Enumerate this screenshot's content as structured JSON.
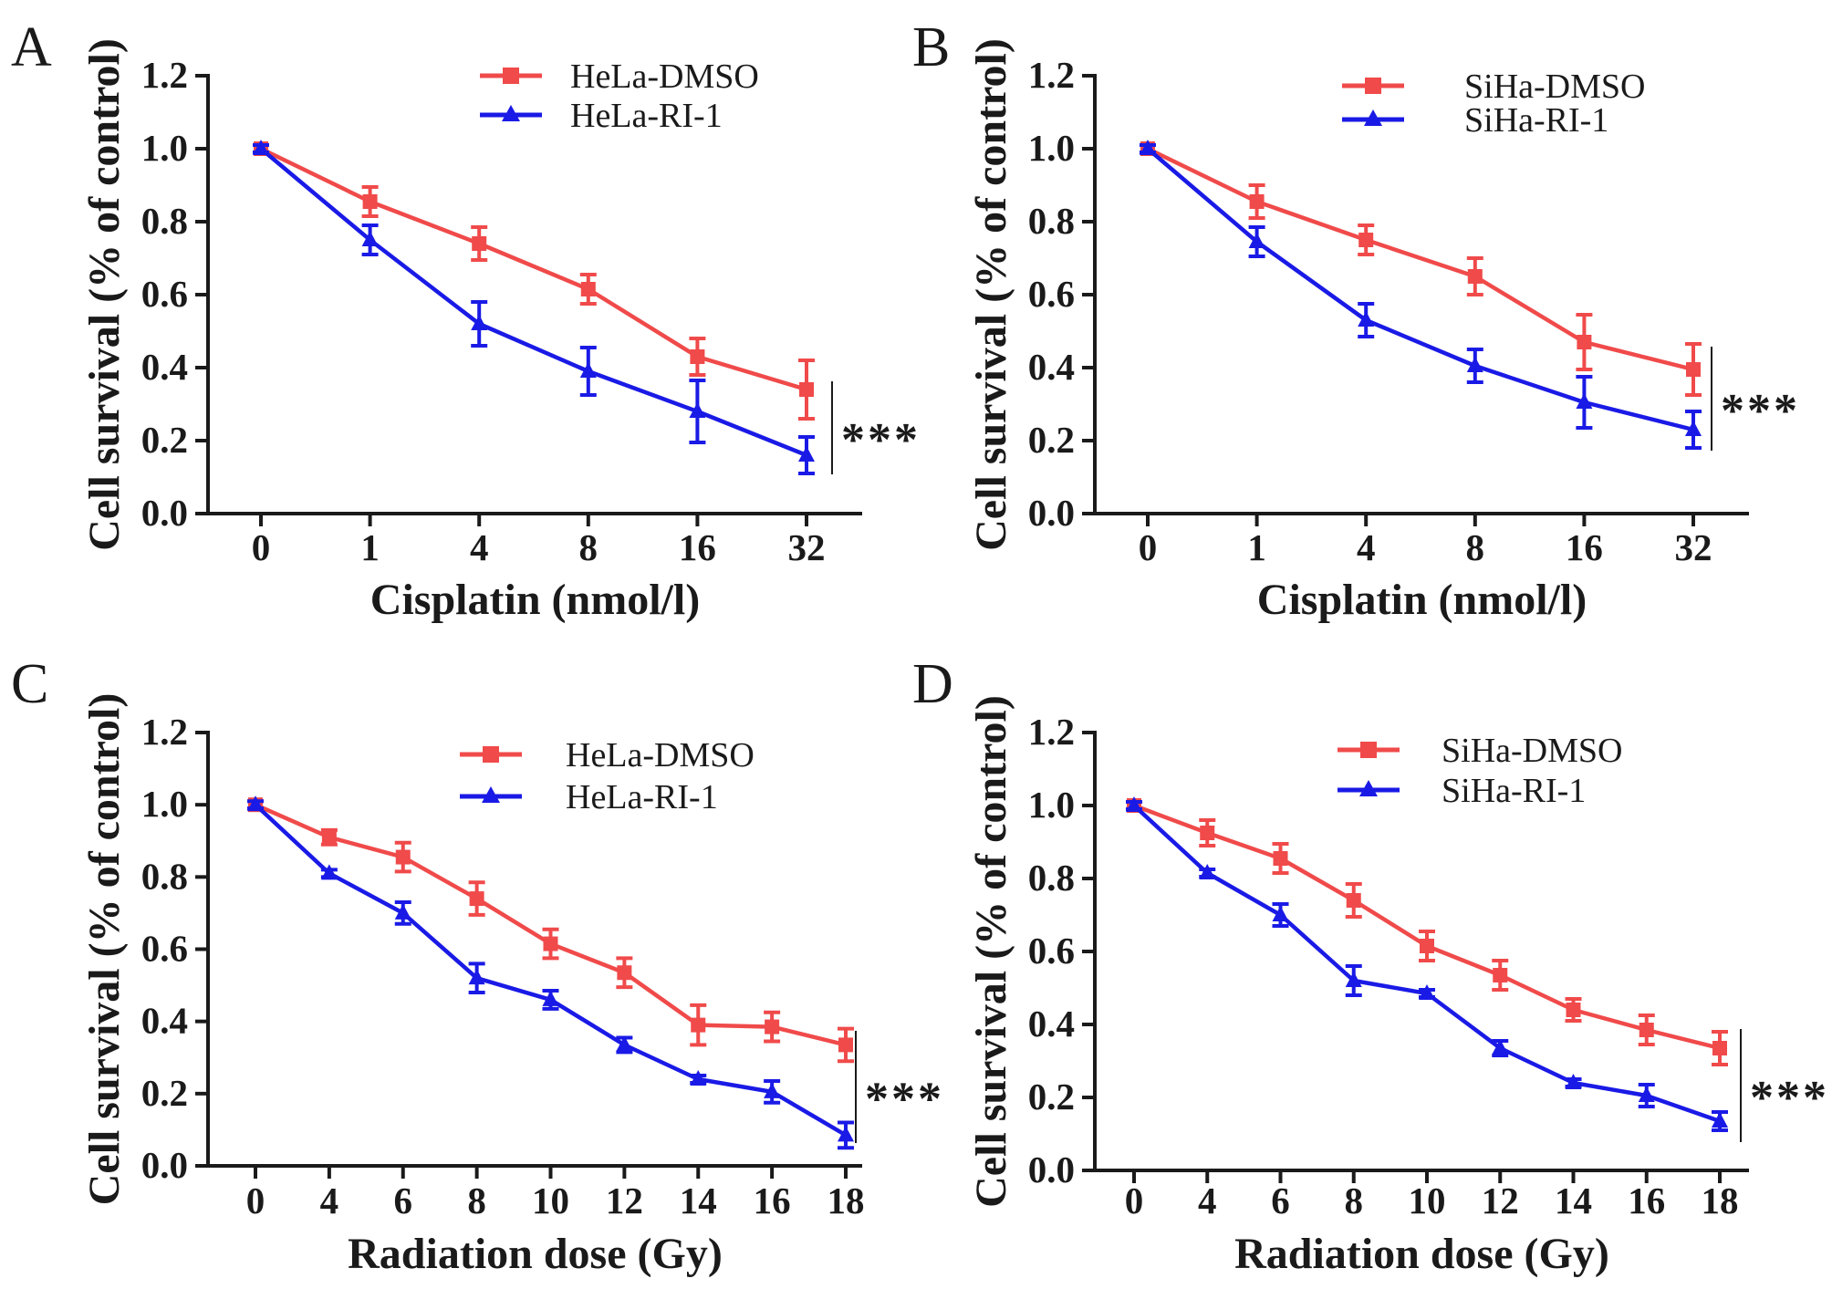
{
  "colors": {
    "dmso": "#f04a4a",
    "ri": "#1a1ae6",
    "axis": "#1a1a1a"
  },
  "chart_data": [
    {
      "panel": "A",
      "type": "line",
      "xlabel": "Cisplatin (nmol/l)",
      "ylabel": "Cell survival (% of control)",
      "categories": [
        "0",
        "1",
        "4",
        "8",
        "16",
        "32"
      ],
      "ylim": [
        0,
        1.2
      ],
      "yticks": [
        "0.0",
        "0.2",
        "0.4",
        "0.6",
        "0.8",
        "1.0",
        "1.2"
      ],
      "legend_position": "top-right",
      "significance": "***",
      "series": [
        {
          "name": "HeLa-DMSO",
          "marker": "square",
          "color_key": "dmso",
          "values": [
            1.0,
            0.855,
            0.74,
            0.615,
            0.43,
            0.34
          ],
          "errors": [
            0.01,
            0.04,
            0.045,
            0.04,
            0.05,
            0.08
          ]
        },
        {
          "name": "HeLa-RI-1",
          "marker": "triangle",
          "color_key": "ri",
          "values": [
            1.0,
            0.75,
            0.52,
            0.39,
            0.28,
            0.16
          ],
          "errors": [
            0.01,
            0.04,
            0.06,
            0.065,
            0.085,
            0.05
          ]
        }
      ]
    },
    {
      "panel": "B",
      "type": "line",
      "xlabel": "Cisplatin (nmol/l)",
      "ylabel": "Cell survival (% of control)",
      "categories": [
        "0",
        "1",
        "4",
        "8",
        "16",
        "32"
      ],
      "ylim": [
        0,
        1.2
      ],
      "yticks": [
        "0.0",
        "0.2",
        "0.4",
        "0.6",
        "0.8",
        "1.0",
        "1.2"
      ],
      "legend_position": "top-right",
      "significance": "***",
      "series": [
        {
          "name": "SiHa-DMSO",
          "marker": "square",
          "color_key": "dmso",
          "values": [
            1.0,
            0.855,
            0.75,
            0.65,
            0.47,
            0.395
          ],
          "errors": [
            0.01,
            0.045,
            0.04,
            0.05,
            0.075,
            0.07
          ]
        },
        {
          "name": "SiHa-RI-1",
          "marker": "triangle",
          "color_key": "ri",
          "values": [
            1.0,
            0.745,
            0.53,
            0.405,
            0.305,
            0.23
          ],
          "errors": [
            0.01,
            0.04,
            0.045,
            0.045,
            0.07,
            0.05
          ]
        }
      ]
    },
    {
      "panel": "C",
      "type": "line",
      "xlabel": "Radiation dose (Gy)",
      "ylabel": "Cell survival (% of control)",
      "categories": [
        "0",
        "4",
        "6",
        "8",
        "10",
        "12",
        "14",
        "16",
        "18"
      ],
      "ylim": [
        0,
        1.2
      ],
      "yticks": [
        "0.0",
        "0.2",
        "0.4",
        "0.6",
        "0.8",
        "1.0",
        "1.2"
      ],
      "legend_position": "top-right",
      "significance": "***",
      "series": [
        {
          "name": "HeLa-DMSO",
          "marker": "square",
          "color_key": "dmso",
          "values": [
            1.0,
            0.91,
            0.855,
            0.74,
            0.615,
            0.535,
            0.39,
            0.385,
            0.335
          ],
          "errors": [
            0.01,
            0.02,
            0.04,
            0.045,
            0.04,
            0.04,
            0.055,
            0.04,
            0.045
          ]
        },
        {
          "name": "HeLa-RI-1",
          "marker": "triangle",
          "color_key": "ri",
          "values": [
            1.0,
            0.81,
            0.7,
            0.52,
            0.46,
            0.335,
            0.24,
            0.205,
            0.085
          ],
          "errors": [
            0.01,
            0.01,
            0.03,
            0.04,
            0.025,
            0.02,
            0.01,
            0.03,
            0.035
          ]
        }
      ]
    },
    {
      "panel": "D",
      "type": "line",
      "xlabel": "Radiation dose (Gy)",
      "ylabel": "Cell survival (% of control)",
      "categories": [
        "0",
        "4",
        "6",
        "8",
        "10",
        "12",
        "14",
        "16",
        "18"
      ],
      "ylim": [
        0,
        1.2
      ],
      "yticks": [
        "0.0",
        "0.2",
        "0.4",
        "0.6",
        "0.8",
        "1.0",
        "1.2"
      ],
      "legend_position": "top-right",
      "significance": "***",
      "series": [
        {
          "name": "SiHa-DMSO",
          "marker": "square",
          "color_key": "dmso",
          "values": [
            1.0,
            0.925,
            0.855,
            0.74,
            0.615,
            0.535,
            0.44,
            0.385,
            0.335
          ],
          "errors": [
            0.01,
            0.035,
            0.04,
            0.045,
            0.04,
            0.04,
            0.03,
            0.04,
            0.045
          ]
        },
        {
          "name": "SiHa-RI-1",
          "marker": "triangle",
          "color_key": "ri",
          "values": [
            1.0,
            0.815,
            0.7,
            0.52,
            0.485,
            0.335,
            0.24,
            0.205,
            0.135
          ],
          "errors": [
            0.01,
            0.01,
            0.03,
            0.04,
            0.01,
            0.02,
            0.01,
            0.03,
            0.025
          ]
        }
      ]
    }
  ]
}
